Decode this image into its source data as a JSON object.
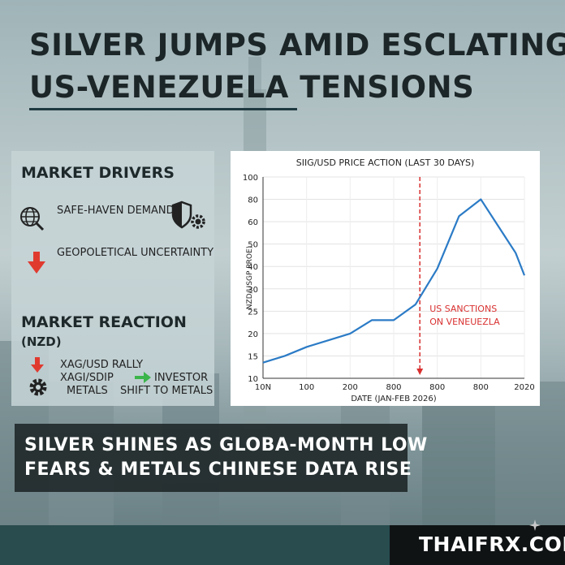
{
  "title": {
    "line1": "SILVER JUMPS AMID ESCLATING",
    "line2": "US-VENEZUELA TENSIONS"
  },
  "drivers": {
    "heading": "MARKET DRIVERS",
    "items": [
      {
        "icon": "globe-icon",
        "label": "SAFE-HAVEN DEMAND"
      },
      {
        "icon": "arrow-down-icon",
        "label": "GEOPOLETICAL UNCERTAINTY"
      }
    ],
    "side_icon": "shield-gear-icon"
  },
  "reaction": {
    "heading": "MARKET REACTION",
    "sub": "(NZD)",
    "rally_label": "XAG/USD RALLY",
    "metals_line1": "XAGI/SDIP",
    "metals_line2": "METALS",
    "investor_line1": "INVESTOR",
    "investor_line2": "SHIFT TO METALS"
  },
  "chart_data": {
    "type": "line",
    "title": "SIIG/USD PRICE ACTION (LAST 30 DAYS)",
    "xlabel": "DATE (JAN-FEB 2026)",
    "ylabel": "NZD/USGP PROE)",
    "x_tick_labels": [
      "10N",
      "100",
      "200",
      "800",
      "800",
      "800",
      "2020"
    ],
    "y_ticks": [
      10,
      15,
      20,
      25,
      30,
      40,
      50,
      60,
      80,
      100
    ],
    "ylim": [
      10,
      100
    ],
    "x": [
      0,
      0.5,
      1.0,
      1.5,
      2.0,
      2.5,
      3.0,
      3.5,
      4.0,
      4.5,
      5.0,
      5.5,
      5.8,
      6.0
    ],
    "values": [
      13.5,
      15,
      17,
      18.5,
      20,
      23,
      23,
      26.5,
      39,
      65,
      80,
      55,
      46,
      36
    ],
    "line_color": "#2b7bc6",
    "grid": true,
    "annotation": {
      "x": 3.6,
      "text_line1": "US SANCTIONS",
      "text_line2": "ON VENEUEZLA",
      "color": "#d93030"
    }
  },
  "caption": {
    "line1": "SILVER SHINES AS GLOBA-MONTH LOW",
    "line2": "FEARS & METALS CHINESE DATA RISE"
  },
  "brand": {
    "label": "THAIFRX.COM"
  },
  "colors": {
    "accent_red": "#e03a2f",
    "accent_green": "#3bb54a",
    "title_rule": "#1f3a40",
    "bottom_band": "#294c4f"
  }
}
